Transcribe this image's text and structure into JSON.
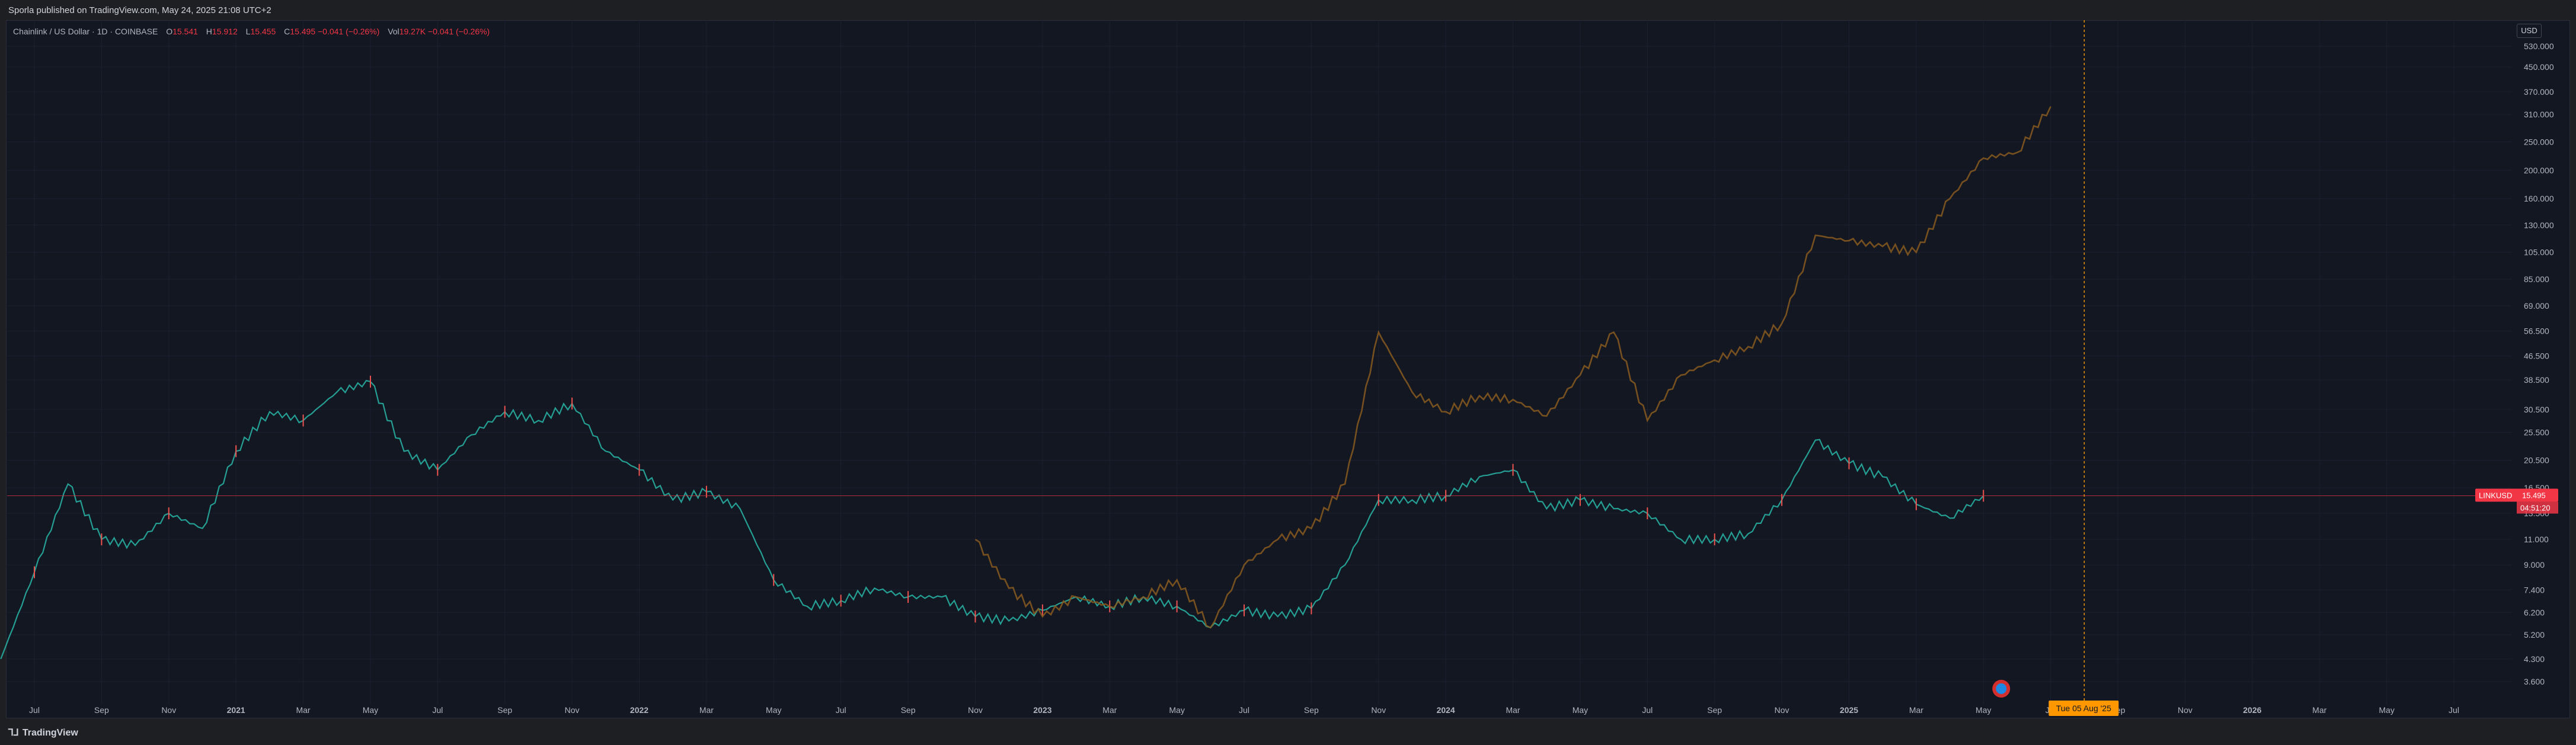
{
  "header": {
    "published": "Sporla published on TradingView.com, May 24, 2025 21:08 UTC+2"
  },
  "legend": {
    "symbol": "Chainlink / US Dollar · 1D · COINBASE",
    "open_label": "O",
    "open": "15.541",
    "high_label": "H",
    "high": "15.912",
    "low_label": "L",
    "low": "15.455",
    "close_label": "C",
    "close": "15.495",
    "change": "−0.041 (−0.26%)",
    "vol_label": "Vol",
    "vol": "19.27K",
    "vol_change": "−0.041 (−0.26%)"
  },
  "currency": "USD",
  "footer": {
    "brand": "TradingView"
  },
  "colors": {
    "background": "#131722",
    "candle_up": "#26a69a",
    "candle_down": "#ef5350",
    "overlay": "#8a5a1e",
    "price_line": "#f23645",
    "cursor_line": "#ff9800",
    "grid": "#1c2030"
  },
  "chart_data": {
    "type": "line",
    "title": "Chainlink / US Dollar · 1D · COINBASE",
    "y_scale": "log",
    "y_ticks": [
      "530.000",
      "450.000",
      "370.000",
      "310.000",
      "250.000",
      "200.000",
      "160.000",
      "130.000",
      "105.000",
      "85.000",
      "69.000",
      "56.500",
      "46.500",
      "38.500",
      "30.500",
      "25.500",
      "20.500",
      "16.500",
      "13.500",
      "11.000",
      "9.000",
      "7.400",
      "6.200",
      "5.200",
      "4.300",
      "3.600"
    ],
    "x_ticks": [
      "Jul",
      "Sep",
      "Nov",
      "2021",
      "Mar",
      "May",
      "Jul",
      "Sep",
      "Nov",
      "2022",
      "Mar",
      "May",
      "Jul",
      "Sep",
      "Nov",
      "2023",
      "Mar",
      "May",
      "Jul",
      "Sep",
      "Nov",
      "2024",
      "Mar",
      "May",
      "Jul",
      "Sep",
      "Nov",
      "2025",
      "Mar",
      "May",
      "Jul",
      "Sep",
      "Nov",
      "2026",
      "Mar",
      "May",
      "Jul"
    ],
    "series": [
      {
        "label_text": "LINKUSD",
        "color": "#26a69a",
        "x": [
          "2020-06",
          "2020-07",
          "2020-08",
          "2020-09",
          "2020-10",
          "2020-11",
          "2020-12",
          "2021-01",
          "2021-02",
          "2021-03",
          "2021-04",
          "2021-05",
          "2021-06",
          "2021-07",
          "2021-08",
          "2021-09",
          "2021-10",
          "2021-11",
          "2021-12",
          "2022-01",
          "2022-02",
          "2022-03",
          "2022-04",
          "2022-05",
          "2022-06",
          "2022-07",
          "2022-08",
          "2022-09",
          "2022-10",
          "2022-11",
          "2022-12",
          "2023-01",
          "2023-02",
          "2023-03",
          "2023-04",
          "2023-05",
          "2023-06",
          "2023-07",
          "2023-08",
          "2023-09",
          "2023-10",
          "2023-11",
          "2023-12",
          "2024-01",
          "2024-02",
          "2024-03",
          "2024-04",
          "2024-05",
          "2024-06",
          "2024-07",
          "2024-08",
          "2024-09",
          "2024-10",
          "2024-11",
          "2024-12",
          "2025-01",
          "2025-02",
          "2025-03",
          "2025-04",
          "2025-05"
        ],
        "y": [
          4.3,
          8.5,
          17.0,
          11.0,
          10.5,
          13.5,
          12.0,
          22.0,
          30.0,
          28.0,
          35.0,
          38.0,
          22.0,
          19.0,
          25.0,
          30.0,
          28.0,
          32.0,
          22.0,
          19.0,
          15.0,
          16.0,
          14.0,
          8.0,
          6.5,
          6.8,
          7.5,
          7.0,
          7.0,
          6.0,
          5.8,
          6.3,
          7.0,
          6.5,
          7.0,
          6.5,
          5.5,
          6.3,
          6.0,
          6.4,
          9.0,
          15.0,
          15.0,
          15.5,
          18.0,
          19.0,
          14.0,
          15.0,
          14.0,
          13.5,
          11.0,
          11.0,
          11.5,
          15.0,
          24.0,
          20.0,
          18.0,
          14.5,
          13.0,
          15.5
        ]
      },
      {
        "label_text": "",
        "color": "#8a5a1e",
        "x": [
          "2022-11",
          "2022-12",
          "2023-01",
          "2023-02",
          "2023-03",
          "2023-04",
          "2023-05",
          "2023-06",
          "2023-07",
          "2023-08",
          "2023-09",
          "2023-10",
          "2023-11",
          "2023-12",
          "2024-01",
          "2024-02",
          "2024-03",
          "2024-04",
          "2024-05",
          "2024-06",
          "2024-07",
          "2024-08",
          "2024-09",
          "2024-10",
          "2024-11",
          "2024-12",
          "2025-01",
          "2025-02",
          "2025-03",
          "2025-04",
          "2025-05",
          "2025-06",
          "2025-07"
        ],
        "y": [
          11.0,
          7.5,
          6.0,
          7.0,
          6.5,
          7.0,
          8.0,
          5.5,
          9.0,
          11.0,
          12.0,
          17.0,
          56.0,
          35.0,
          30.0,
          34.0,
          33.0,
          29.0,
          40.0,
          56.0,
          28.0,
          40.0,
          45.0,
          50.0,
          60.0,
          120.0,
          115.0,
          110.0,
          105.0,
          160.0,
          220.0,
          230.0,
          330.0
        ]
      }
    ],
    "current_price_label": "LINKUSD",
    "current_price": "15.495",
    "countdown": "04:51:20",
    "cursor_date_label": "Tue 05 Aug '25",
    "grid": true
  }
}
